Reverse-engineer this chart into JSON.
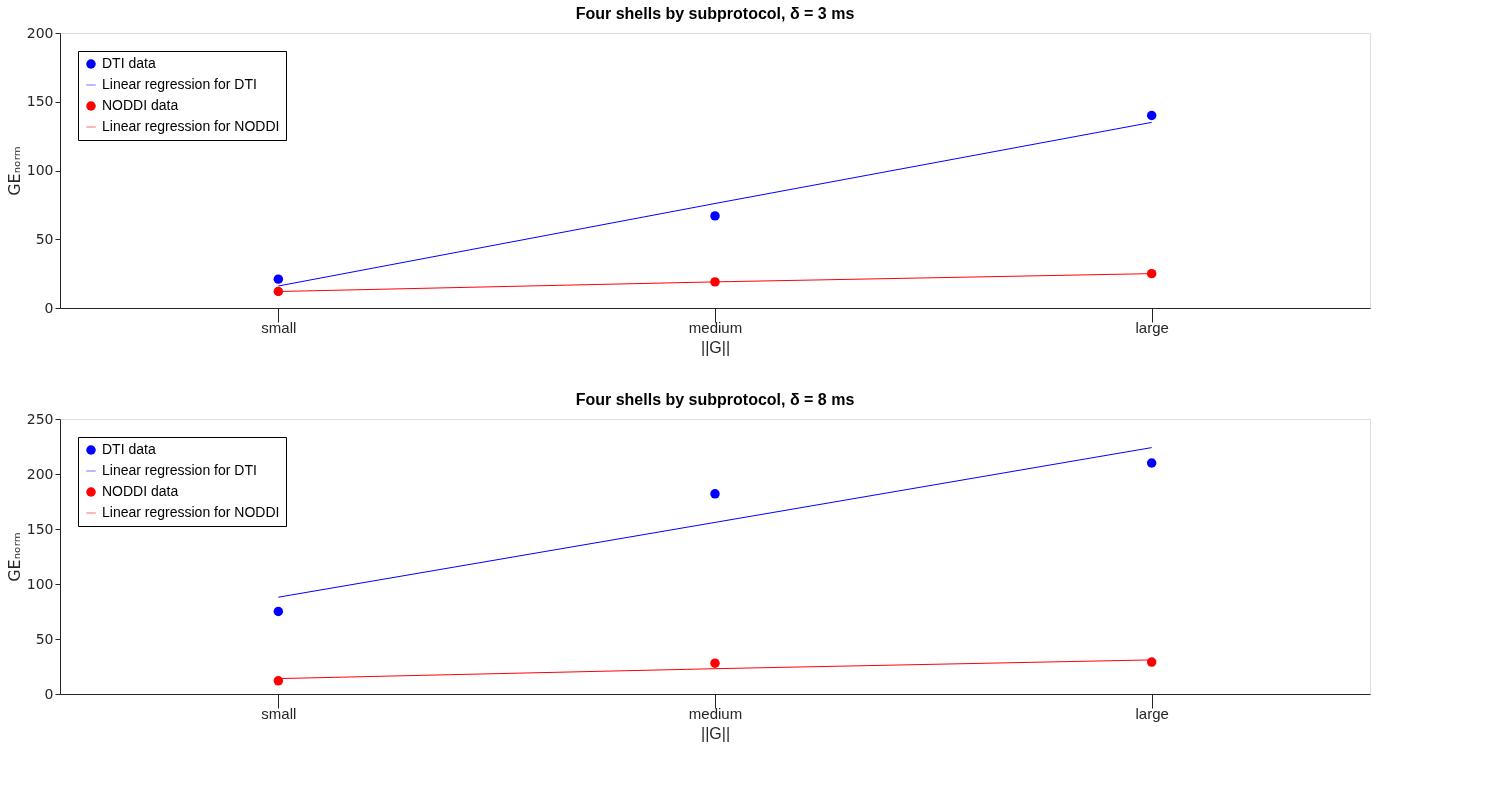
{
  "chart_data": [
    {
      "type": "scatter",
      "title": "Four shells by subprotocol, δ = 3 ms",
      "xlabel": "||G||",
      "ylabel": "GEₙₒᵣₘ",
      "categories": [
        "small",
        "medium",
        "large"
      ],
      "ylim": [
        0,
        200
      ],
      "yticks": [
        0,
        50,
        100,
        150,
        200
      ],
      "grid": false,
      "legend": "top left",
      "series": [
        {
          "name": "DTI data",
          "marker": "circle",
          "color": "#0000ff",
          "values": [
            21,
            67,
            140
          ]
        },
        {
          "name": "Linear regression for DTI",
          "type": "line",
          "marker": "none",
          "line_style": "solid",
          "color": "#0000ff",
          "values": [
            16,
            76,
            135
          ]
        },
        {
          "name": "NODDI data",
          "marker": "circle",
          "color": "#ff0000",
          "values": [
            12,
            19,
            25
          ]
        },
        {
          "name": "Linear regression for NODDI",
          "type": "line",
          "marker": "none",
          "line_style": "solid",
          "color": "#ff0000",
          "values": [
            12,
            19,
            25
          ]
        }
      ]
    },
    {
      "type": "scatter",
      "title": "Four shells by subprotocol, δ = 8 ms",
      "xlabel": "||G||",
      "ylabel": "GEₙₒᵣₘ",
      "categories": [
        "small",
        "medium",
        "large"
      ],
      "ylim": [
        0,
        250
      ],
      "yticks": [
        0,
        50,
        100,
        150,
        200,
        250
      ],
      "grid": false,
      "legend": "top left",
      "series": [
        {
          "name": "DTI data",
          "marker": "circle",
          "color": "#0000ff",
          "values": [
            75,
            182,
            210
          ]
        },
        {
          "name": "Linear regression for DTI",
          "type": "line",
          "marker": "none",
          "line_style": "solid",
          "color": "#0000ff",
          "values": [
            88,
            156,
            224
          ]
        },
        {
          "name": "NODDI data",
          "marker": "circle",
          "color": "#ff0000",
          "values": [
            12,
            28,
            29
          ]
        },
        {
          "name": "Linear regression for NODDI",
          "type": "line",
          "marker": "none",
          "line_style": "solid",
          "color": "#ff0000",
          "values": [
            14,
            23,
            31
          ]
        }
      ]
    }
  ]
}
